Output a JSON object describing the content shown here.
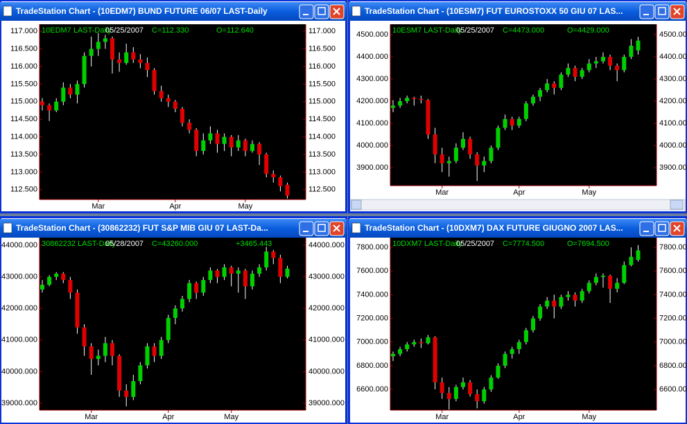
{
  "chart_data": [
    {
      "type": "candlestick",
      "window_title": "TradeStation Chart - (10EDM7) BUND FUTURE 06/07 LAST-Daily",
      "symbol": "10EDM7 LAST-Daily",
      "date": "05/25/2007",
      "close_label": "C=112.330",
      "open_label": "O=112.640",
      "up_color": "#00d000",
      "down_color": "#e00000",
      "categories": [
        null,
        null,
        null,
        null,
        null,
        null,
        null,
        null,
        "Mar",
        null,
        null,
        null,
        null,
        null,
        null,
        null,
        null,
        null,
        null,
        "Apr",
        null,
        null,
        null,
        null,
        null,
        null,
        null,
        null,
        null,
        "May",
        null,
        null,
        null,
        null,
        null,
        null
      ],
      "open": [
        115.0,
        114.9,
        114.75,
        115.0,
        115.4,
        115.2,
        115.5,
        116.3,
        116.5,
        116.7,
        116.8,
        116.2,
        116.1,
        116.4,
        116.2,
        116.1,
        115.9,
        115.3,
        115.1,
        115.0,
        114.8,
        114.4,
        114.2,
        113.6,
        113.9,
        114.1,
        113.8,
        114.0,
        113.7,
        113.9,
        113.6,
        113.8,
        113.5,
        112.95,
        112.85,
        112.64
      ],
      "high": [
        115.1,
        114.95,
        115.1,
        115.55,
        115.5,
        115.6,
        116.4,
        116.85,
        116.95,
        116.9,
        116.85,
        116.4,
        116.65,
        116.55,
        116.35,
        116.25,
        115.95,
        115.45,
        115.2,
        115.05,
        114.85,
        114.5,
        114.25,
        114.1,
        114.3,
        114.2,
        114.1,
        114.05,
        114.05,
        113.95,
        113.9,
        113.85,
        113.55,
        113.05,
        112.9,
        112.7
      ],
      "low": [
        114.75,
        114.45,
        114.7,
        114.9,
        115.1,
        114.95,
        115.4,
        116.0,
        116.3,
        116.5,
        115.8,
        115.85,
        116.05,
        116.1,
        115.95,
        115.7,
        115.2,
        115.0,
        114.85,
        114.7,
        114.3,
        114.1,
        113.45,
        113.5,
        113.8,
        113.55,
        113.6,
        113.45,
        113.6,
        113.45,
        113.55,
        113.2,
        112.85,
        112.7,
        112.45,
        112.25
      ],
      "close": [
        114.9,
        114.75,
        115.0,
        115.4,
        115.2,
        115.5,
        116.3,
        116.5,
        116.7,
        116.8,
        116.2,
        116.1,
        116.4,
        116.2,
        116.1,
        115.9,
        115.3,
        115.1,
        115.0,
        114.8,
        114.4,
        114.2,
        113.6,
        113.9,
        114.1,
        113.8,
        114.0,
        113.7,
        113.9,
        113.6,
        113.8,
        113.5,
        112.95,
        112.85,
        112.6,
        112.33
      ],
      "ylim": [
        112.22,
        117.2
      ],
      "yticks": [
        {
          "value": 112.5,
          "label": "112.500"
        },
        {
          "value": 113,
          "label": "113.000"
        },
        {
          "value": 113.5,
          "label": "113.500"
        },
        {
          "value": 114,
          "label": "114.000"
        },
        {
          "value": 114.5,
          "label": "114.500"
        },
        {
          "value": 115,
          "label": "115.000"
        },
        {
          "value": 115.5,
          "label": "115.500"
        },
        {
          "value": 116,
          "label": "116.000"
        },
        {
          "value": 116.5,
          "label": "116.500"
        },
        {
          "value": 117,
          "label": "117.000"
        }
      ]
    },
    {
      "type": "candlestick",
      "window_title": "TradeStation Chart - (10ESM7) FUT EUROSTOXX 50  GIU 07 LAS...",
      "symbol": "10ESM7 LAST-Daily",
      "date": "05/25/2007",
      "close_label": "C=4473.000",
      "open_label": "O=4429.000",
      "up_color": "#00d000",
      "down_color": "#e00000",
      "categories": [
        null,
        null,
        null,
        null,
        null,
        null,
        null,
        "Mar",
        null,
        null,
        null,
        null,
        null,
        null,
        null,
        null,
        null,
        null,
        "Apr",
        null,
        null,
        null,
        null,
        null,
        null,
        null,
        null,
        null,
        "May",
        null,
        null,
        null,
        null,
        null,
        null,
        null
      ],
      "open": [
        4170,
        4180,
        4200,
        4215,
        4210,
        4205,
        4050,
        3960,
        3920,
        3930,
        3990,
        4030,
        3960,
        3910,
        3930,
        3990,
        4080,
        4120,
        4090,
        4120,
        4190,
        4220,
        4250,
        4280,
        4260,
        4320,
        4350,
        4310,
        4340,
        4370,
        4380,
        4400,
        4360,
        4340,
        4400,
        4429
      ],
      "high": [
        4205,
        4215,
        4225,
        4220,
        4225,
        4210,
        4080,
        3990,
        3950,
        4010,
        4060,
        4040,
        3970,
        3950,
        4000,
        4090,
        4140,
        4130,
        4130,
        4200,
        4230,
        4260,
        4300,
        4290,
        4330,
        4370,
        4360,
        4350,
        4390,
        4400,
        4420,
        4410,
        4370,
        4410,
        4480,
        4490
      ],
      "low": [
        4150,
        4170,
        4190,
        4180,
        4190,
        4030,
        3920,
        3880,
        3860,
        3920,
        3980,
        3940,
        3840,
        3880,
        3920,
        3980,
        4070,
        4070,
        4080,
        4110,
        4180,
        4200,
        4240,
        4230,
        4250,
        4310,
        4290,
        4300,
        4330,
        4350,
        4370,
        4340,
        4290,
        4330,
        4390,
        4410
      ],
      "close": [
        4180,
        4200,
        4215,
        4210,
        4205,
        4050,
        3960,
        3920,
        3930,
        3990,
        4030,
        3960,
        3910,
        3930,
        3990,
        4080,
        4120,
        4090,
        4120,
        4190,
        4220,
        4250,
        4280,
        4260,
        4320,
        4350,
        4310,
        4340,
        4370,
        4380,
        4400,
        4360,
        4340,
        4400,
        4450,
        4473
      ],
      "ylim": [
        3819,
        4547
      ],
      "yticks": [
        {
          "value": 3900,
          "label": "3900.000"
        },
        {
          "value": 4000,
          "label": "4000.000"
        },
        {
          "value": 4100,
          "label": "4100.000"
        },
        {
          "value": 4200,
          "label": "4200.000"
        },
        {
          "value": 4300,
          "label": "4300.000"
        },
        {
          "value": 4400,
          "label": "4400.000"
        },
        {
          "value": 4500,
          "label": "4500.000"
        }
      ]
    },
    {
      "type": "candlestick",
      "window_title": "TradeStation Chart - (30862232) FUT S&P MIB GIU 07 LAST-Da...",
      "symbol": "30862232 LAST-Daily",
      "date": "05/28/2007",
      "close_label": "C=43260.000",
      "change_label": "+3465.443",
      "up_color": "#00d000",
      "down_color": "#e00000",
      "categories": [
        null,
        null,
        null,
        null,
        null,
        null,
        null,
        "Mar",
        null,
        null,
        null,
        null,
        null,
        null,
        null,
        null,
        null,
        null,
        "Apr",
        null,
        null,
        null,
        null,
        null,
        null,
        null,
        null,
        "May",
        null,
        null,
        null,
        null,
        null,
        null,
        null,
        null
      ],
      "open": [
        42600,
        42750,
        43000,
        43100,
        42900,
        42500,
        41400,
        40800,
        40400,
        40500,
        40900,
        40500,
        39400,
        39200,
        39700,
        40200,
        40800,
        40500,
        41000,
        41700,
        42000,
        42300,
        42800,
        42500,
        42900,
        43200,
        43000,
        43300,
        43100,
        43200,
        42700,
        43100,
        43300,
        43800,
        43600,
        43000
      ],
      "high": [
        42900,
        43050,
        43150,
        43150,
        43000,
        42600,
        41500,
        40900,
        40700,
        41100,
        41000,
        40550,
        39600,
        39900,
        40300,
        40900,
        40900,
        41100,
        41800,
        42100,
        42400,
        42900,
        42850,
        43000,
        43300,
        43250,
        43400,
        43350,
        43300,
        43250,
        43200,
        43400,
        43950,
        43850,
        43700,
        43350
      ],
      "low": [
        42500,
        42700,
        42900,
        42800,
        42300,
        41200,
        40500,
        39900,
        40200,
        40300,
        40200,
        39200,
        38900,
        39100,
        39600,
        40100,
        40300,
        40400,
        40900,
        41500,
        41900,
        42200,
        42300,
        42400,
        42800,
        42800,
        42900,
        42700,
        42500,
        42300,
        42600,
        43000,
        43200,
        43400,
        42800,
        42950
      ],
      "close": [
        42750,
        43000,
        43100,
        42900,
        42500,
        41400,
        40800,
        40400,
        40500,
        40900,
        40500,
        39400,
        39200,
        39700,
        40200,
        40800,
        40500,
        41000,
        41700,
        42000,
        42300,
        42800,
        42500,
        42900,
        43200,
        43000,
        43300,
        43100,
        43200,
        42700,
        43100,
        43300,
        43800,
        43600,
        43000,
        43260
      ],
      "ylim": [
        38781,
        44241
      ],
      "yticks": [
        {
          "value": 39000,
          "label": "39000.000"
        },
        {
          "value": 40000,
          "label": "40000.000"
        },
        {
          "value": 41000,
          "label": "41000.000"
        },
        {
          "value": 42000,
          "label": "42000.000"
        },
        {
          "value": 43000,
          "label": "43000.000"
        },
        {
          "value": 44000,
          "label": "44000.000"
        }
      ]
    },
    {
      "type": "candlestick",
      "window_title": "TradeStation Chart - (10DXM7) DAX FUTURE GIUGNO 2007 LAS...",
      "symbol": "10DXM7 LAST-Daily",
      "date": "05/25/2007",
      "close_label": "C=7774.500",
      "open_label": "O=7694.500",
      "up_color": "#00d000",
      "down_color": "#e00000",
      "categories": [
        null,
        null,
        null,
        null,
        null,
        null,
        null,
        "Mar",
        null,
        null,
        null,
        null,
        null,
        null,
        null,
        null,
        null,
        null,
        "Apr",
        null,
        null,
        null,
        null,
        null,
        null,
        null,
        null,
        null,
        "May",
        null,
        null,
        null,
        null,
        null,
        null,
        null
      ],
      "open": [
        6880,
        6900,
        6940,
        6980,
        7000,
        6990,
        7040,
        6660,
        6570,
        6520,
        6620,
        6660,
        6560,
        6500,
        6600,
        6700,
        6800,
        6900,
        6940,
        7000,
        7100,
        7200,
        7300,
        7350,
        7300,
        7380,
        7400,
        7350,
        7430,
        7500,
        7550,
        7560,
        7450,
        7500,
        7650,
        7694.5
      ],
      "high": [
        6920,
        6960,
        7000,
        7020,
        7030,
        7060,
        7050,
        6700,
        6620,
        6640,
        6700,
        6680,
        6600,
        6620,
        6720,
        6820,
        6920,
        6960,
        7020,
        7120,
        7220,
        7320,
        7380,
        7400,
        7400,
        7430,
        7420,
        7450,
        7520,
        7580,
        7580,
        7570,
        7540,
        7680,
        7800,
        7820
      ],
      "low": [
        6840,
        6880,
        6920,
        6960,
        6950,
        6980,
        6600,
        6520,
        6430,
        6500,
        6600,
        6540,
        6440,
        6480,
        6580,
        6690,
        6780,
        6860,
        6900,
        6980,
        7080,
        7180,
        7280,
        7200,
        7280,
        7350,
        7300,
        7330,
        7410,
        7480,
        7460,
        7330,
        7420,
        7490,
        7640,
        7680
      ],
      "close": [
        6900,
        6940,
        6980,
        7000,
        6990,
        7040,
        6660,
        6570,
        6520,
        6620,
        6660,
        6560,
        6500,
        6600,
        6700,
        6800,
        6900,
        6940,
        7000,
        7100,
        7200,
        7300,
        7350,
        7300,
        7380,
        7400,
        7350,
        7430,
        7500,
        7550,
        7560,
        7450,
        7500,
        7650,
        7720,
        7774.5
      ],
      "ylim": [
        6425,
        7882
      ],
      "yticks": [
        {
          "value": 6600,
          "label": "6600.000"
        },
        {
          "value": 6800,
          "label": "6800.000"
        },
        {
          "value": 7000,
          "label": "7000.000"
        },
        {
          "value": 7200,
          "label": "7200.000"
        },
        {
          "value": 7400,
          "label": "7400.000"
        },
        {
          "value": 7600,
          "label": "7600.000"
        },
        {
          "value": 7800,
          "label": "7800.000"
        }
      ]
    }
  ]
}
